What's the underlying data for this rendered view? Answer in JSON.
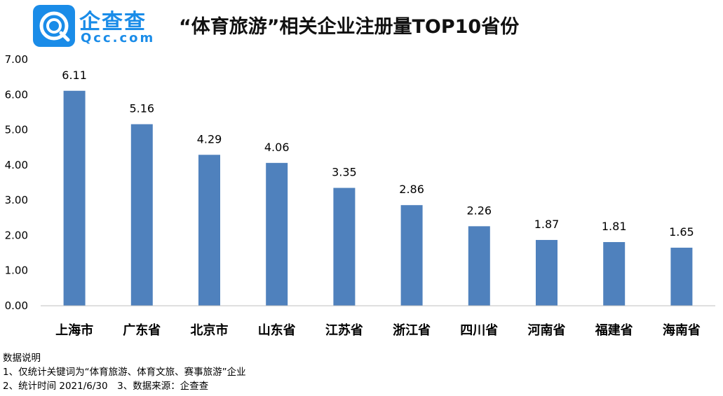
{
  "brand": {
    "name_cn": "企查查",
    "name_en": "Qcc.com"
  },
  "title": "“体育旅游”相关企业注册量TOP10省份",
  "notes": {
    "heading": "数据说明",
    "line1": "1、仅统计关键词为“体育旅游、体育文旅、赛事旅游”企业",
    "line2": "2、统计时间 2021/6/30　3、数据来源：企查查"
  },
  "colors": {
    "bar": "#4f81bd",
    "brand": "#1a8ce8",
    "axis": "#bfbfbf"
  },
  "icons": {
    "logo": "qcc-logo-icon"
  },
  "chart_data": {
    "type": "bar",
    "categories": [
      "上海市",
      "广东省",
      "北京市",
      "山东省",
      "江苏省",
      "浙江省",
      "四川省",
      "河南省",
      "福建省",
      "海南省"
    ],
    "values": [
      6.11,
      5.16,
      4.29,
      4.06,
      3.35,
      2.86,
      2.26,
      1.87,
      1.81,
      1.65
    ],
    "value_labels": [
      "6.11",
      "5.16",
      "4.29",
      "4.06",
      "3.35",
      "2.86",
      "2.26",
      "1.87",
      "1.81",
      "1.65"
    ],
    "y_ticks": [
      "0.00",
      "1.00",
      "2.00",
      "3.00",
      "4.00",
      "5.00",
      "6.00",
      "7.00"
    ],
    "ylim": [
      0,
      7
    ],
    "grid": false,
    "legend": "none"
  }
}
